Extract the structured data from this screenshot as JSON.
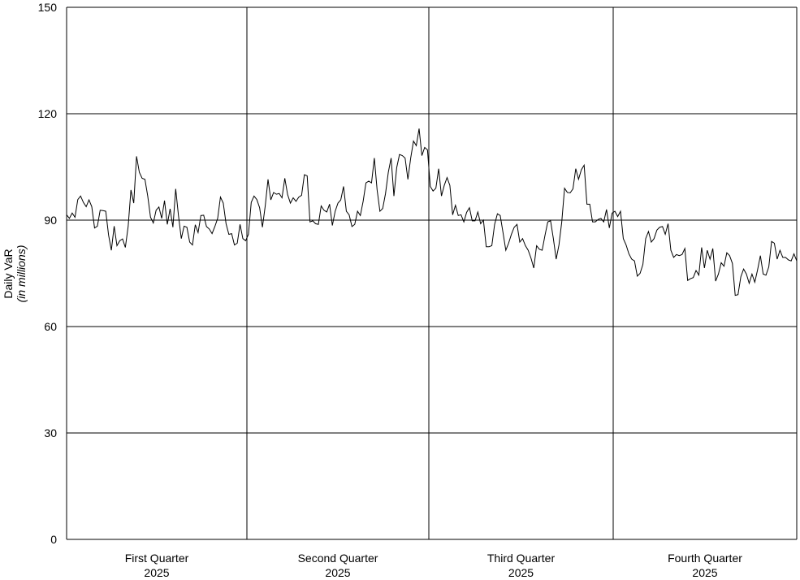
{
  "chart_data": {
    "type": "line",
    "title": "",
    "ylabel": "Daily VaR",
    "ylabel_sub": "(in millions)",
    "ylim": [
      0,
      150
    ],
    "yticks": [
      0,
      30,
      60,
      90,
      120,
      150
    ],
    "grid": true,
    "quarters": [
      {
        "label": "First Quarter",
        "year": "2025"
      },
      {
        "label": "Second Quarter",
        "year": "2025"
      },
      {
        "label": "Third Quarter",
        "year": "2025"
      },
      {
        "label": "Fourth Quarter",
        "year": "2025"
      }
    ],
    "series": [
      {
        "values": [
          91.5,
          90.5,
          92.0,
          90.8,
          95.8,
          96.8,
          95.0,
          93.8,
          95.7,
          93.8,
          87.8,
          88.3,
          92.8,
          92.7,
          92.5,
          85.8,
          81.5,
          88.3,
          82.8,
          84.2,
          84.7,
          82.3,
          88.2,
          98.5,
          94.8,
          108.0,
          103.5,
          101.8,
          101.5,
          96.8,
          90.8,
          89.2,
          92.8,
          93.7,
          90.5,
          95.5,
          88.8,
          93.2,
          88.0,
          98.8,
          91.2,
          84.8,
          88.3,
          88.0,
          83.8,
          83.0,
          88.7,
          86.5,
          91.3,
          91.4,
          88.2,
          87.5,
          86.2,
          88.2,
          90.5,
          96.5,
          94.8,
          89.0,
          86.0,
          86.2,
          83.0,
          83.5,
          88.8,
          84.8,
          84.2,
          86.0,
          95.0,
          96.8,
          95.8,
          93.5,
          88.0,
          94.0,
          101.5,
          95.7,
          97.8,
          97.3,
          97.5,
          96.3,
          101.8,
          97.2,
          94.8,
          96.3,
          95.3,
          96.5,
          97.0,
          102.8,
          102.5,
          89.5,
          89.8,
          89.0,
          88.8,
          94.0,
          92.8,
          92.3,
          94.5,
          88.5,
          92.5,
          94.8,
          95.7,
          99.5,
          92.5,
          91.5,
          88.2,
          88.8,
          92.5,
          91.3,
          95.3,
          100.5,
          101.0,
          100.5,
          107.5,
          98.5,
          92.5,
          93.3,
          97.5,
          103.5,
          107.5,
          96.8,
          104.8,
          108.5,
          108.2,
          107.5,
          101.5,
          107.5,
          112.3,
          111.0,
          115.8,
          108.2,
          110.5,
          109.8,
          99.5,
          98.2,
          99.0,
          104.5,
          96.8,
          99.8,
          102.0,
          99.8,
          91.5,
          94.2,
          91.3,
          91.5,
          89.5,
          92.2,
          93.5,
          89.8,
          89.8,
          92.3,
          89.0,
          90.0,
          82.5,
          82.5,
          82.8,
          88.8,
          91.8,
          91.3,
          86.5,
          81.5,
          83.5,
          86.0,
          88.0,
          88.8,
          83.8,
          84.8,
          82.8,
          81.5,
          79.3,
          76.5,
          82.8,
          81.8,
          81.5,
          85.7,
          89.5,
          89.8,
          84.8,
          79.0,
          83.0,
          89.5,
          99.0,
          97.8,
          97.7,
          98.8,
          104.5,
          101.5,
          104.2,
          105.5,
          94.5,
          94.5,
          89.5,
          89.5,
          90.2,
          90.5,
          89.5,
          93.0,
          87.8,
          92.0,
          92.5,
          91.0,
          92.5,
          84.8,
          83.0,
          80.5,
          79.0,
          78.5,
          74.2,
          75.0,
          77.5,
          84.8,
          86.8,
          83.8,
          84.8,
          87.2,
          88.0,
          88.2,
          86.0,
          89.0,
          81.5,
          79.5,
          80.3,
          80.0,
          80.3,
          82.0,
          73.0,
          73.5,
          73.8,
          75.8,
          74.5,
          82.3,
          76.5,
          81.5,
          79.0,
          82.0,
          72.8,
          74.8,
          78.0,
          77.0,
          80.8,
          80.0,
          77.8,
          68.8,
          69.0,
          74.0,
          76.2,
          74.8,
          72.2,
          74.8,
          72.5,
          76.0,
          80.0,
          74.8,
          74.5,
          76.8,
          84.0,
          83.5,
          79.0,
          81.5,
          79.5,
          79.5,
          78.8,
          78.5,
          80.5,
          78.5
        ]
      }
    ]
  }
}
